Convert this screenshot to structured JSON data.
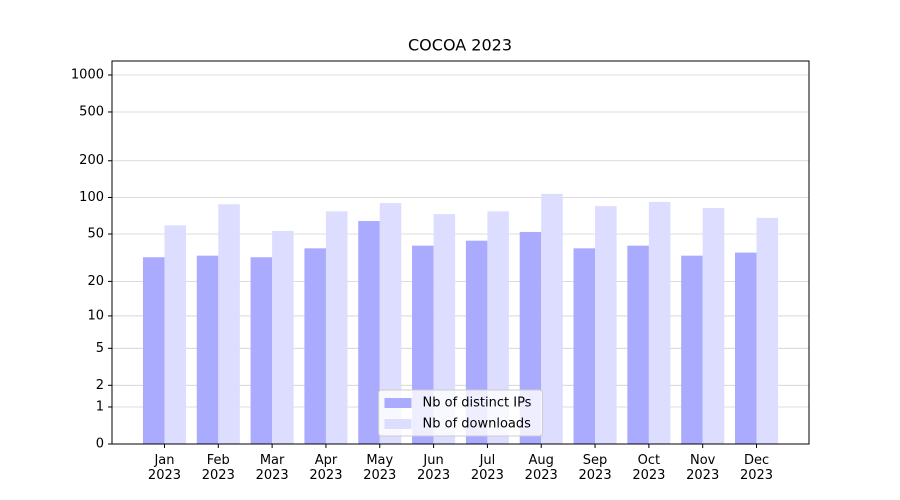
{
  "chart_data": {
    "type": "bar",
    "title": "COCOA 2023",
    "categories": [
      "Jan\n2023",
      "Feb\n2023",
      "Mar\n2023",
      "Apr\n2023",
      "May\n2023",
      "Jun\n2023",
      "Jul\n2023",
      "Aug\n2023",
      "Sep\n2023",
      "Oct\n2023",
      "Nov\n2023",
      "Dec\n2023"
    ],
    "series": [
      {
        "name": "Nb of distinct IPs",
        "color": "#aaaaff",
        "values": [
          32,
          33,
          32,
          38,
          64,
          40,
          44,
          52,
          38,
          40,
          33,
          35
        ]
      },
      {
        "name": "Nb of downloads",
        "color": "#ddddff",
        "values": [
          59,
          88,
          53,
          77,
          90,
          73,
          77,
          107,
          85,
          92,
          82,
          68
        ]
      }
    ],
    "yscale": "log1p",
    "ylim": [
      0,
      1300
    ],
    "yticks": [
      0,
      1,
      2,
      5,
      10,
      20,
      50,
      100,
      200,
      500,
      1000
    ],
    "grid": true,
    "legend": "lower center"
  }
}
